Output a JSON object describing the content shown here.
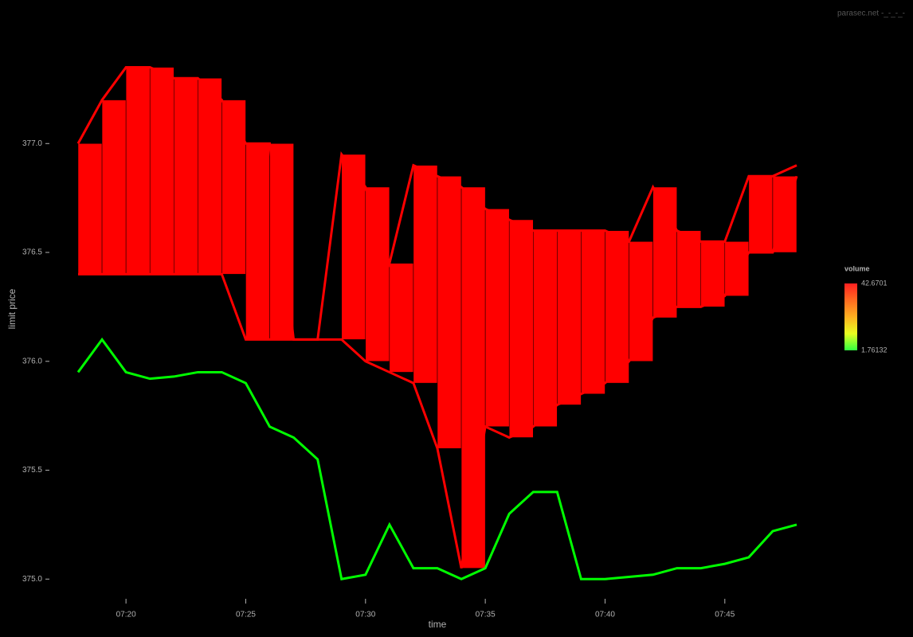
{
  "chart_data": {
    "type": "orderbook",
    "watermark": "parasec.net -_-_-_-",
    "x_label": "time",
    "y_label": "limit price",
    "x": [
      "07:18",
      "07:19",
      "07:20",
      "07:21",
      "07:22",
      "07:23",
      "07:24",
      "07:25",
      "07:26",
      "07:27",
      "07:28",
      "07:29",
      "07:30",
      "07:31",
      "07:32",
      "07:33",
      "07:34",
      "07:35",
      "07:36",
      "07:37",
      "07:38",
      "07:39",
      "07:40",
      "07:41",
      "07:42",
      "07:43",
      "07:44",
      "07:45",
      "07:46",
      "07:47",
      "07:48"
    ],
    "series": [
      {
        "color": "#ff0000",
        "values": [
          377.0,
          377.2,
          377.35,
          377.35,
          377.3,
          377.3,
          377.2,
          377.0,
          377.0,
          376.1,
          376.1,
          376.95,
          376.8,
          376.45,
          376.9,
          376.85,
          376.8,
          376.7,
          376.65,
          376.6,
          376.6,
          376.6,
          376.6,
          376.55,
          376.8,
          376.6,
          376.55,
          376.55,
          376.85,
          376.85,
          376.9
        ]
      },
      {
        "color": "#ff0000",
        "values": [
          376.4,
          376.4,
          376.4,
          376.4,
          376.4,
          376.4,
          376.4,
          376.1,
          376.1,
          376.1,
          376.1,
          376.1,
          376.0,
          375.95,
          375.9,
          375.6,
          375.05,
          375.7,
          375.65,
          375.7,
          375.8,
          375.85,
          375.9,
          376.0,
          376.2,
          376.25,
          376.25,
          376.3,
          376.5,
          376.5,
          376.85
        ]
      },
      {
        "color": "#00ff00",
        "values": [
          375.95,
          376.1,
          375.95,
          375.92,
          375.93,
          375.95,
          375.95,
          375.9,
          375.7,
          375.65,
          375.55,
          375.0,
          375.02,
          375.25,
          375.05,
          375.05,
          375.0,
          375.05,
          375.3,
          375.4,
          375.4,
          375.0,
          375.0,
          375.01,
          375.02,
          375.05,
          375.05,
          375.07,
          375.1,
          375.22,
          375.25
        ]
      }
    ],
    "xlim": [
      "07:18",
      "07:48"
    ],
    "xticks": [
      "07:20",
      "07:25",
      "07:30",
      "07:35",
      "07:40",
      "07:45"
    ],
    "ylim": [
      374.99,
      377.48
    ],
    "yticks": [
      {
        "value": 375,
        "label": "375.0"
      },
      375.5,
      {
        "value": 376,
        "label": "376.0"
      },
      376.5,
      {
        "value": 377,
        "label": "377.0"
      }
    ],
    "colorbar": {
      "title": "volume",
      "max": 42.6701,
      "min": 1.76132,
      "colors": [
        "#ff2020",
        "#ff6a20",
        "#ffb020",
        "#e8ff20",
        "#30ff40"
      ]
    }
  }
}
